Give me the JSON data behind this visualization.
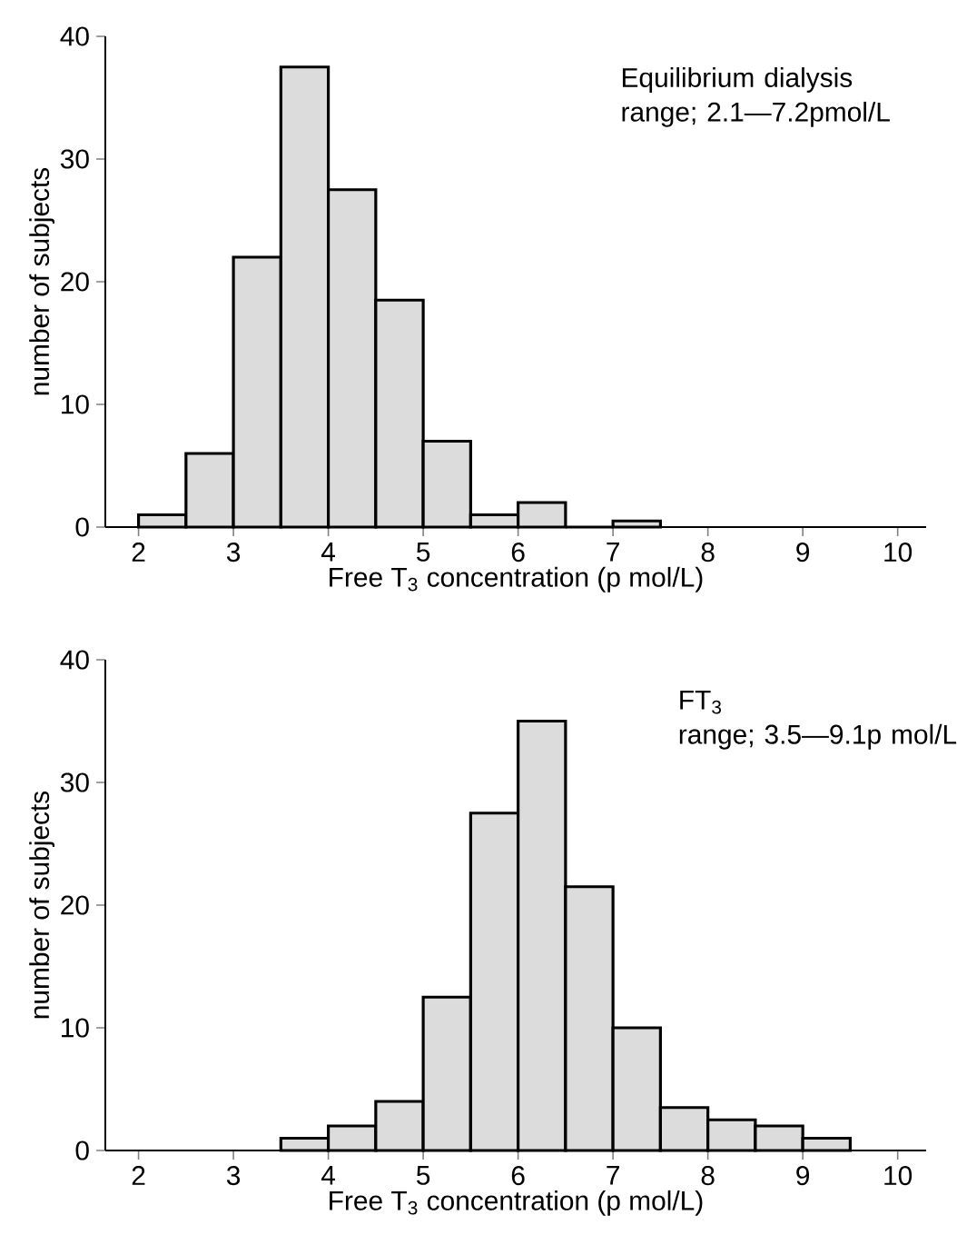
{
  "chart_data": [
    {
      "type": "histogram",
      "xlabel": "Free T$_{3}$ concentration (p mol/L)",
      "ylabel": "number of subjects",
      "annotations": [
        "Equilibrium dialysis",
        "range; 2.1—7.2pmol/L"
      ],
      "bins": [
        2,
        2.5,
        3,
        3.5,
        4,
        4.5,
        5,
        5.5,
        6,
        6.5,
        7,
        7.5
      ],
      "values": [
        1,
        6,
        22,
        37.5,
        27.5,
        18.5,
        7,
        1,
        2,
        0,
        0.5
      ],
      "color": "#dcdcdc",
      "xlim": [
        1.65,
        10.3
      ],
      "ylim": [
        0,
        40
      ],
      "xticks": [
        2,
        3,
        4,
        5,
        6,
        7,
        8,
        9,
        10
      ],
      "yticks": [
        0,
        10,
        20,
        30,
        40
      ]
    },
    {
      "type": "histogram",
      "xlabel": "Free T$_{3}$ concentration (p mol/L)",
      "ylabel": "number of subjects",
      "annotations": [
        "FT$_{3}$",
        "range; 3.5—9.1p mol/L"
      ],
      "bins": [
        3.5,
        4,
        4.5,
        5,
        5.5,
        6,
        6.5,
        7,
        7.5,
        8,
        8.5,
        9,
        9.5
      ],
      "values": [
        1,
        2,
        4,
        12.5,
        27.5,
        35,
        21.5,
        10,
        3.5,
        2.5,
        2,
        1
      ],
      "color": "#dcdcdc",
      "xlim": [
        1.65,
        10.3
      ],
      "ylim": [
        0,
        40
      ],
      "xticks": [
        2,
        3,
        4,
        5,
        6,
        7,
        8,
        9,
        10
      ],
      "yticks": [
        0,
        10,
        20,
        30,
        40
      ]
    }
  ]
}
